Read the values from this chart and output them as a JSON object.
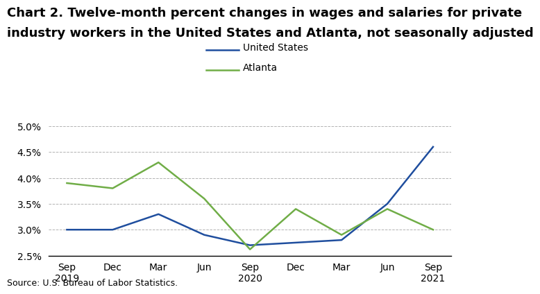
{
  "title_line1": "Chart 2. Twelve-month percent changes in wages and salaries for private",
  "title_line2": "industry workers in the United States and Atlanta, not seasonally adjusted",
  "x_labels": [
    "Sep\n2019",
    "Dec",
    "Mar",
    "Jun",
    "Sep\n2020",
    "Dec",
    "Mar",
    "Jun",
    "Sep\n2021"
  ],
  "us_values": [
    3.0,
    3.0,
    3.3,
    2.9,
    2.7,
    2.75,
    2.8,
    3.5,
    4.6
  ],
  "atl_values": [
    3.9,
    3.8,
    4.3,
    3.6,
    2.62,
    3.4,
    2.9,
    3.4,
    3.0
  ],
  "us_color": "#1f4e9e",
  "atl_color": "#70ad47",
  "ylim": [
    2.5,
    5.1
  ],
  "yticks": [
    2.5,
    3.0,
    3.5,
    4.0,
    4.5,
    5.0
  ],
  "legend_labels": [
    "United States",
    "Atlanta"
  ],
  "source_text": "Source: U.S. Bureau of Labor Statistics.",
  "background_color": "#ffffff",
  "grid_color": "#aaaaaa",
  "line_width": 1.8,
  "title_fontsize": 13,
  "tick_fontsize": 10,
  "legend_fontsize": 10,
  "source_fontsize": 9
}
